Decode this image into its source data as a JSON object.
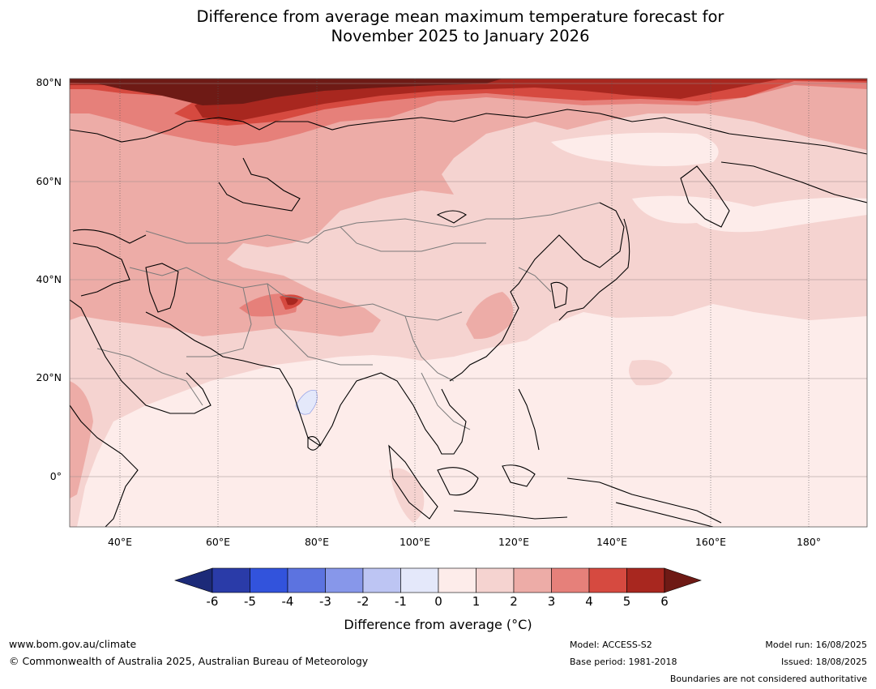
{
  "title_line1": "Difference from average mean maximum temperature forecast for",
  "title_line2": "November 2025 to January 2026",
  "lat_labels": [
    "80°N",
    "60°N",
    "40°N",
    "20°N",
    "0°"
  ],
  "lon_labels": [
    "40°E",
    "60°E",
    "80°E",
    "100°E",
    "120°E",
    "140°E",
    "160°E",
    "180°"
  ],
  "colorbar": {
    "ticks": [
      "-6",
      "-5",
      "-4",
      "-3",
      "-2",
      "-1",
      "0",
      "1",
      "2",
      "3",
      "4",
      "5",
      "6"
    ],
    "colors": [
      "#2a3ba8",
      "#3253dc",
      "#5c73e0",
      "#8797ea",
      "#bdc5f3",
      "#e4e8fa",
      "#fdecea",
      "#f5d3d0",
      "#edaca7",
      "#e6807a",
      "#d64a40",
      "#a8271f"
    ],
    "low_extend_color": "#1c2a78",
    "high_extend_color": "#6e1a15",
    "label": "Difference from average (°C)"
  },
  "footer": {
    "website": "www.bom.gov.au/climate",
    "copyright": "© Commonwealth of Australia 2025, Australian Bureau of Meteorology",
    "model": "Model: ACCESS-S2",
    "base_period": "Base period: 1981-2018",
    "model_run": "Model run: 16/08/2025",
    "issued": "Issued: 18/08/2025",
    "disclaimer": "Boundaries are not considered authoritative"
  }
}
